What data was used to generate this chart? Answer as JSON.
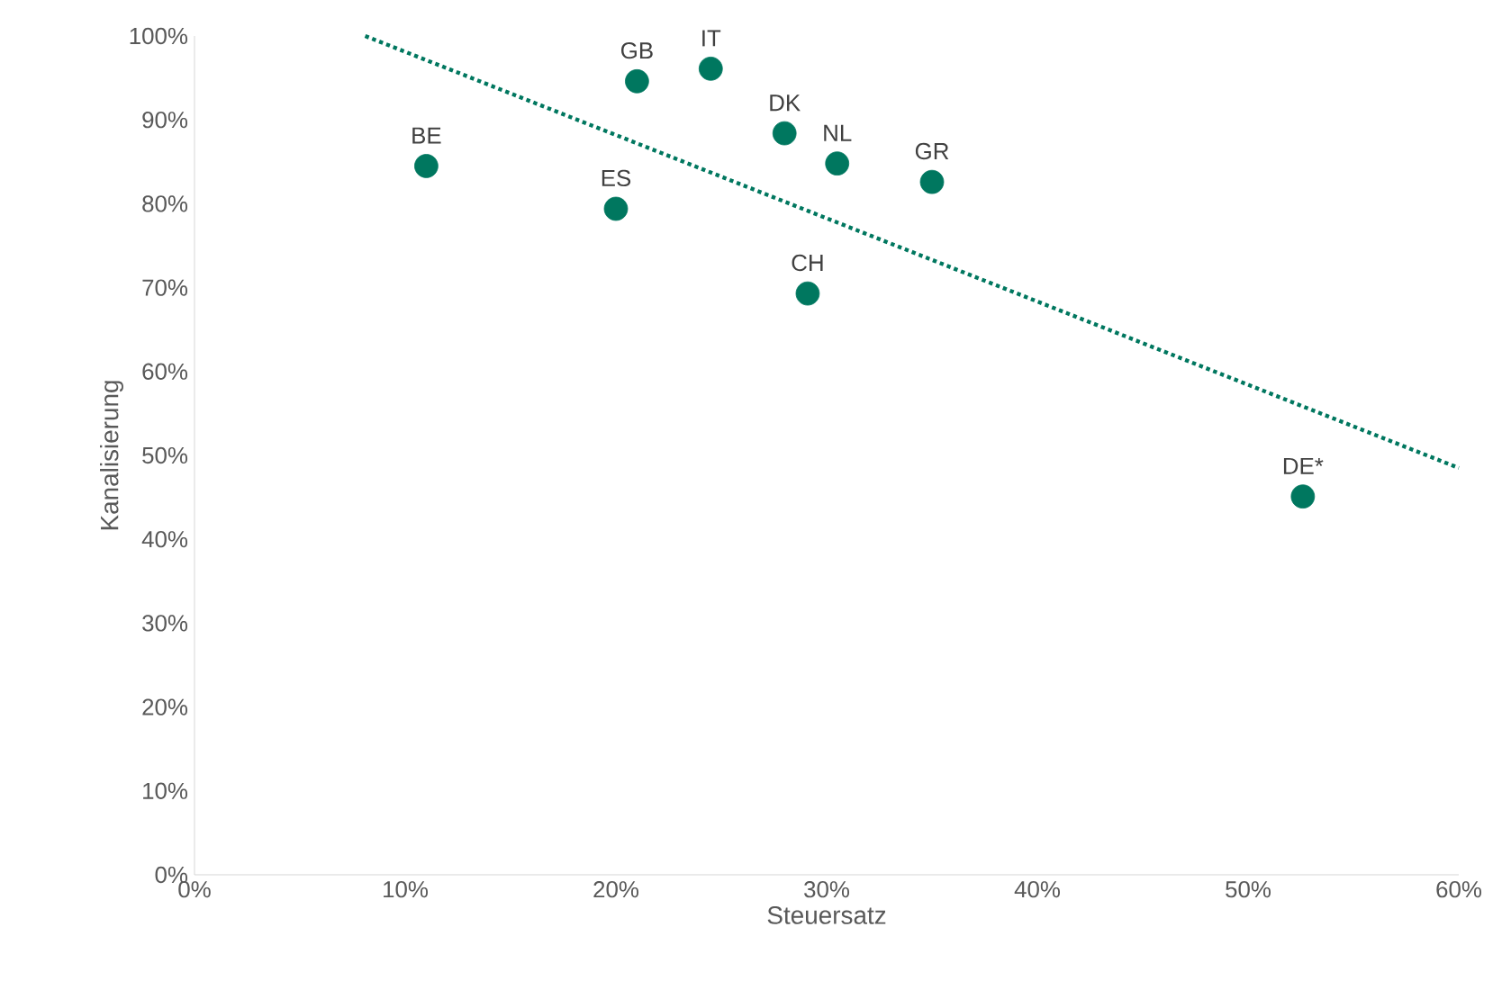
{
  "chart_data": {
    "type": "scatter",
    "xlabel": "Steuersatz",
    "ylabel": "Kanalisierung",
    "marker": "circle",
    "xlim": [
      0,
      60
    ],
    "ylim": [
      0,
      100
    ],
    "xticks": [
      {
        "value": 0,
        "label": "0%"
      },
      {
        "value": 10,
        "label": "10%"
      },
      {
        "value": 20,
        "label": "20%"
      },
      {
        "value": 30,
        "label": "30%"
      },
      {
        "value": 40,
        "label": "40%"
      },
      {
        "value": 50,
        "label": "50%"
      },
      {
        "value": 60,
        "label": "60%"
      }
    ],
    "yticks": [
      {
        "value": 0,
        "label": "0%"
      },
      {
        "value": 10,
        "label": "10%"
      },
      {
        "value": 20,
        "label": "20%"
      },
      {
        "value": 30,
        "label": "30%"
      },
      {
        "value": 40,
        "label": "40%"
      },
      {
        "value": 50,
        "label": "50%"
      },
      {
        "value": 60,
        "label": "60%"
      },
      {
        "value": 70,
        "label": "70%"
      },
      {
        "value": 80,
        "label": "80%"
      },
      {
        "value": 90,
        "label": "90%"
      },
      {
        "value": 100,
        "label": "100%"
      }
    ],
    "series": [
      {
        "color": "#00775f",
        "x": [
          11.0,
          20.0,
          21.0,
          24.5,
          28.0,
          30.5,
          29.1,
          35.0,
          52.6
        ],
        "values": [
          84.5,
          79.4,
          94.6,
          96.1,
          88.4,
          84.8,
          69.3,
          82.6,
          45.1
        ]
      },
      {
        "type": "line",
        "color": "#00775f",
        "line_style": "dotted",
        "marker": "none",
        "x": [
          8.1,
          60
        ],
        "values": [
          100,
          48.5
        ]
      }
    ],
    "annotations": [
      {
        "text": "BE",
        "x": 11.0,
        "y": 84.5
      },
      {
        "text": "ES",
        "x": 20.0,
        "y": 79.4
      },
      {
        "text": "GB",
        "x": 21.0,
        "y": 94.6
      },
      {
        "text": "IT",
        "x": 24.5,
        "y": 96.1
      },
      {
        "text": "DK",
        "x": 28.0,
        "y": 88.4
      },
      {
        "text": "NL",
        "x": 30.5,
        "y": 84.8
      },
      {
        "text": "CH",
        "x": 29.1,
        "y": 69.3
      },
      {
        "text": "GR",
        "x": 35.0,
        "y": 82.6
      },
      {
        "text": "DE*",
        "x": 52.6,
        "y": 45.1
      }
    ]
  }
}
